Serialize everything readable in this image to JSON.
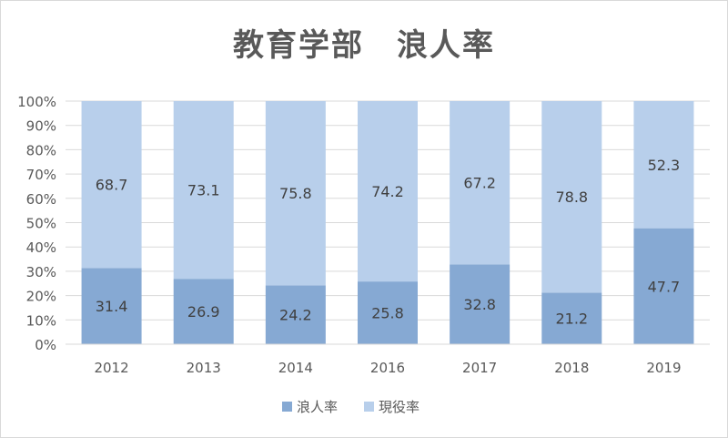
{
  "chart_data": {
    "type": "bar",
    "stacked": true,
    "percent_stacked": true,
    "title": "教育学部　浪人率",
    "categories": [
      "2012",
      "2013",
      "2014",
      "2016",
      "2017",
      "2018",
      "2019"
    ],
    "series": [
      {
        "name": "浪人率",
        "values": [
          31.4,
          26.9,
          24.2,
          25.8,
          32.8,
          21.2,
          47.7
        ]
      },
      {
        "name": "現役率",
        "values": [
          68.7,
          73.1,
          75.8,
          74.2,
          67.2,
          78.8,
          52.3
        ]
      }
    ],
    "colors": {
      "浪人率": "#86a9d3",
      "現役率": "#b8cfeb",
      "gridline": "#d9d9d9",
      "axis_text": "#595959",
      "data_label": "#404040",
      "title": "#595959"
    },
    "ylim": [
      0,
      100
    ],
    "y_ticks": [
      "0%",
      "10%",
      "20%",
      "30%",
      "40%",
      "50%",
      "60%",
      "70%",
      "80%",
      "90%",
      "100%"
    ],
    "xlabel": "",
    "ylabel": "",
    "grid": true,
    "legend_position": "bottom"
  }
}
